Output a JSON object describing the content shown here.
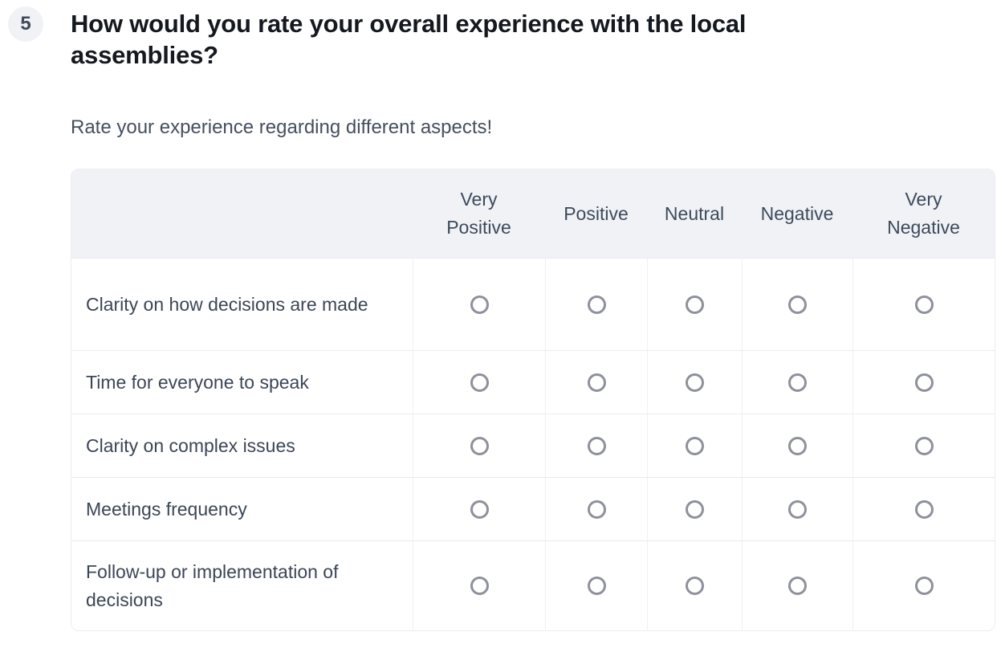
{
  "question": {
    "number": "5",
    "title": "How would you rate your overall experience with the local assemblies?",
    "subtitle": "Rate your experience regarding different aspects!"
  },
  "matrix": {
    "columns": [
      "Very Positive",
      "Positive",
      "Neutral",
      "Negative",
      "Very Negative"
    ],
    "rows": [
      "Clarity on how decisions are made",
      "Time for everyone to speak",
      "Clarity on complex issues",
      "Meetings frequency",
      "Follow-up or implementation of decisions"
    ]
  },
  "colors": {
    "header_bg": "#f0f2f6",
    "title_text": "#14181f",
    "body_text": "#3b4656",
    "radio_border": "#8e909b",
    "row_divider": "#e9ebee",
    "column_divider": "#eef0f3"
  }
}
